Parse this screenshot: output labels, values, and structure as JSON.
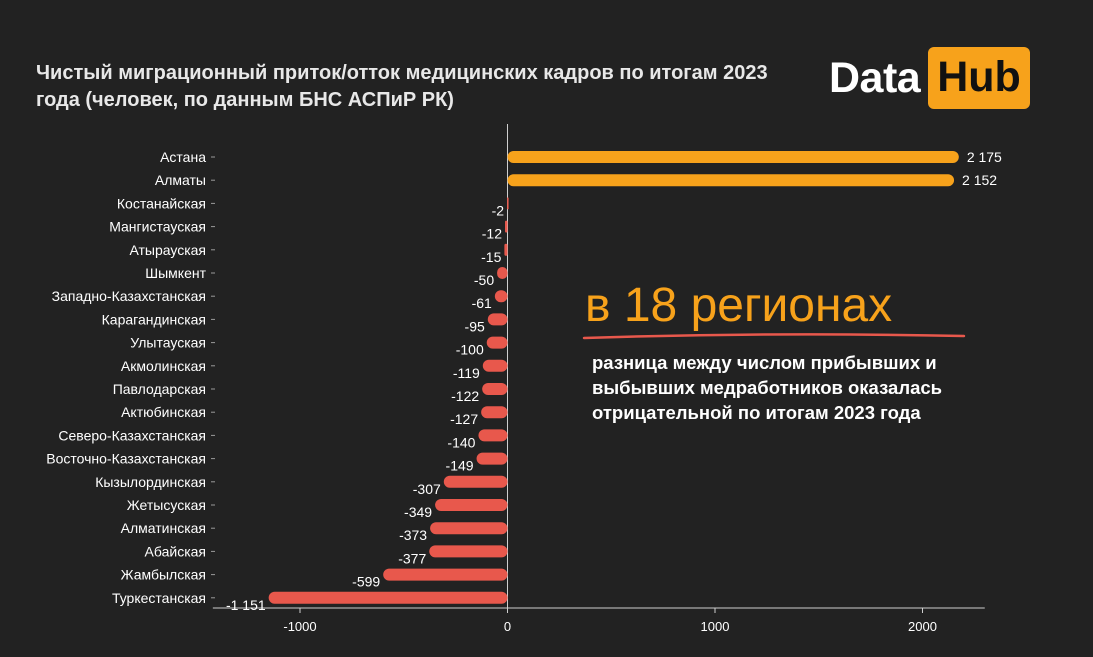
{
  "title": "Чистый миграционный приток/отток медицинских кадров по итогам 2023 года (человек, по данным БНС АСПиР РК)",
  "logo": {
    "word1": "Data",
    "word2": "Hub"
  },
  "callout": {
    "headline": "в 18 регионах",
    "text": "разница между числом прибывших и выбывших медработников оказалась отрицательной по итогам 2023 года"
  },
  "colors": {
    "background": "#222222",
    "positive": "#f7a21b",
    "negative": "#e8584c",
    "text": "#ffffff"
  },
  "chart_data": {
    "type": "bar",
    "orientation": "horizontal",
    "title": "Чистый миграционный приток/отток медицинских кадров по итогам 2023 года (человек, по данным БНС АСПиР РК)",
    "xlabel": "",
    "ylabel": "",
    "xlim": [
      -1420,
      2300
    ],
    "xticks": [
      -1000,
      0,
      1000,
      2000
    ],
    "xtick_labels": [
      "-1000",
      "0",
      "1000",
      "2000"
    ],
    "grid": false,
    "categories": [
      "Астана",
      "Алматы",
      "Костанайская",
      "Мангистауская",
      "Атырауская",
      "Шымкент",
      "Западно-Казахстанская",
      "Карагандинская",
      "Улытауская",
      "Акмолинская",
      "Павлодарская",
      "Актюбинская",
      "Северо-Казахстанская",
      "Восточно-Казахстанская",
      "Кызылординская",
      "Жетысуская",
      "Алматинская",
      "Абайская",
      "Жамбылская",
      "Туркестанская"
    ],
    "values": [
      2175,
      2152,
      -2,
      -12,
      -15,
      -50,
      -61,
      -95,
      -100,
      -119,
      -122,
      -127,
      -140,
      -149,
      -307,
      -349,
      -373,
      -377,
      -599,
      -1151
    ],
    "value_labels": [
      "2 175",
      "2 152",
      "-2",
      "-12",
      "-15",
      "-50",
      "-61",
      "-95",
      "-100",
      "-119",
      "-122",
      "-127",
      "-140",
      "-149",
      "-307",
      "-349",
      "-373",
      "-377",
      "-599",
      "-1 151"
    ]
  }
}
